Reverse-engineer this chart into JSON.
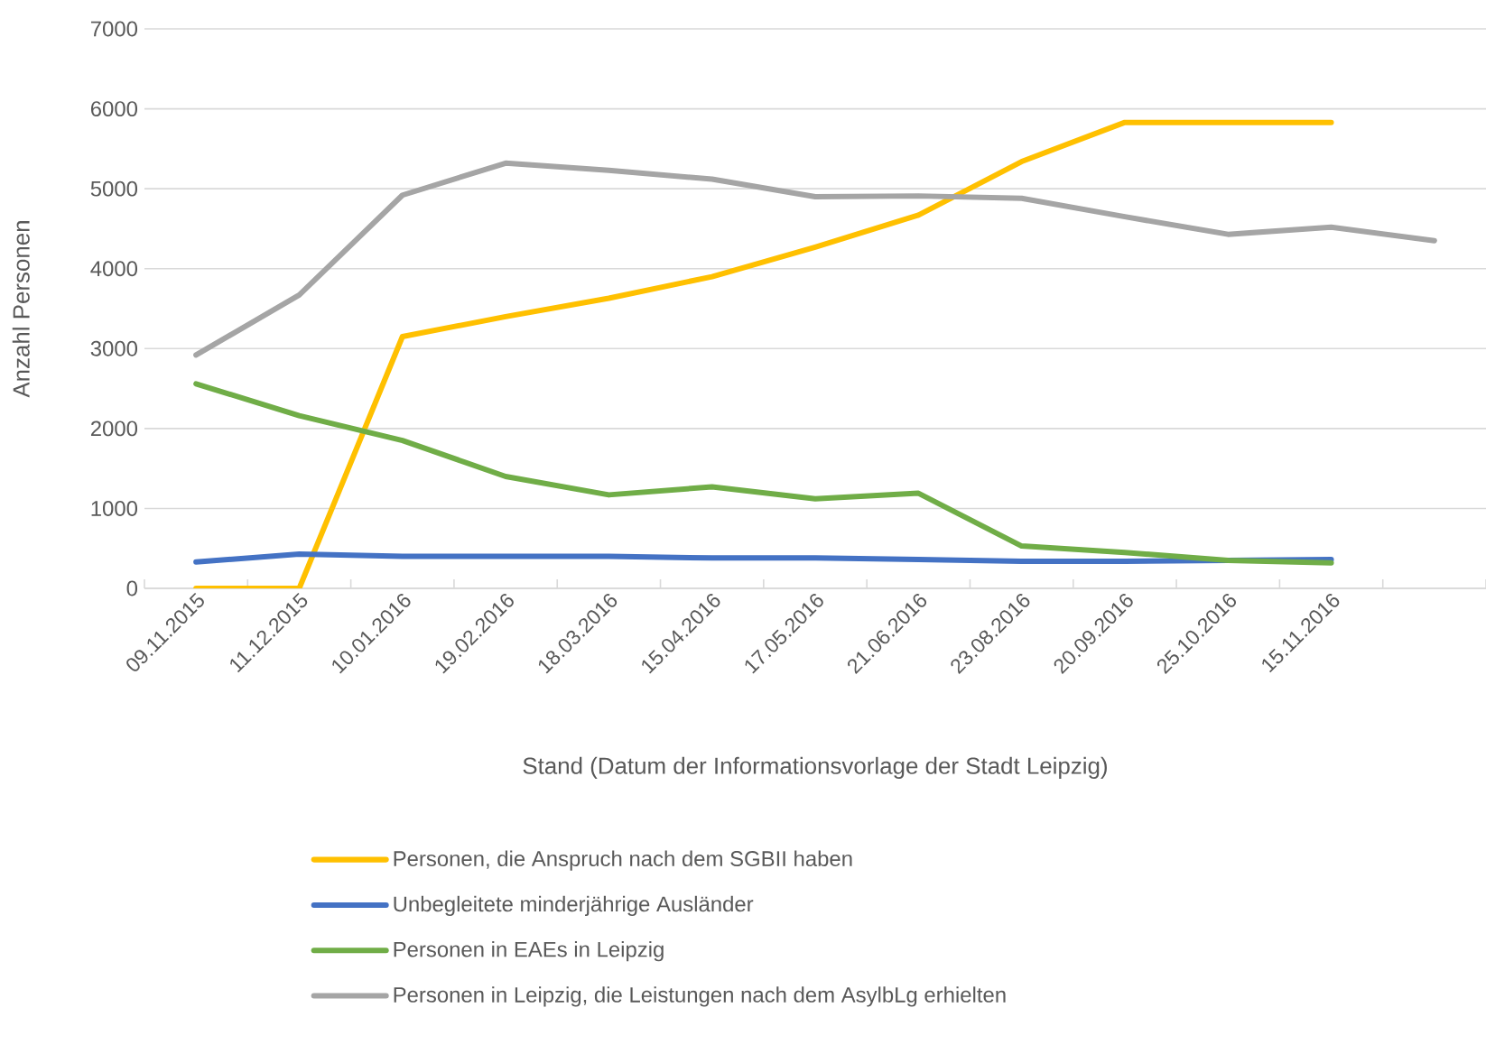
{
  "chart_data": {
    "type": "line",
    "xlabel": "Stand (Datum der Informationsvorlage der Stadt Leipzig)",
    "ylabel": "Anzahl Personen",
    "categories": [
      "09.11.2015",
      "11.12.2015",
      "10.01.2016",
      "19.02.2016",
      "18.03.2016",
      "15.04.2016",
      "17.05.2016",
      "21.06.2016",
      "23.08.2016",
      "20.09.2016",
      "25.10.2016",
      "15.11.2016",
      null
    ],
    "series": [
      {
        "name": "Personen, die Anspruch nach dem SGBII haben",
        "color": "#ffc000",
        "values": [
          0,
          0,
          3150,
          3400,
          3630,
          3900,
          4270,
          4670,
          5340,
          5830,
          5830,
          5830,
          null
        ]
      },
      {
        "name": "Unbegleitete minderjährige Ausländer",
        "color": "#4472c4",
        "values": [
          330,
          430,
          400,
          400,
          400,
          380,
          380,
          360,
          340,
          340,
          350,
          360,
          null
        ]
      },
      {
        "name": "Personen in EAEs in Leipzig",
        "color": "#70ad47",
        "values": [
          2560,
          2160,
          1850,
          1400,
          1170,
          1270,
          1120,
          1190,
          530,
          450,
          350,
          320,
          null
        ]
      },
      {
        "name": "Personen in Leipzig, die Leistungen nach dem AsylbLg erhielten",
        "color": "#a5a5a5",
        "values": [
          2920,
          3670,
          4920,
          5320,
          5230,
          5120,
          4900,
          4910,
          4880,
          4650,
          4430,
          4520,
          4350
        ]
      }
    ],
    "ylim": [
      0,
      7000
    ],
    "yticks": [
      0,
      1000,
      2000,
      3000,
      4000,
      5000,
      6000,
      7000
    ],
    "grid": "y",
    "legend": "bottom",
    "line_style": "solid",
    "marker": "none"
  }
}
